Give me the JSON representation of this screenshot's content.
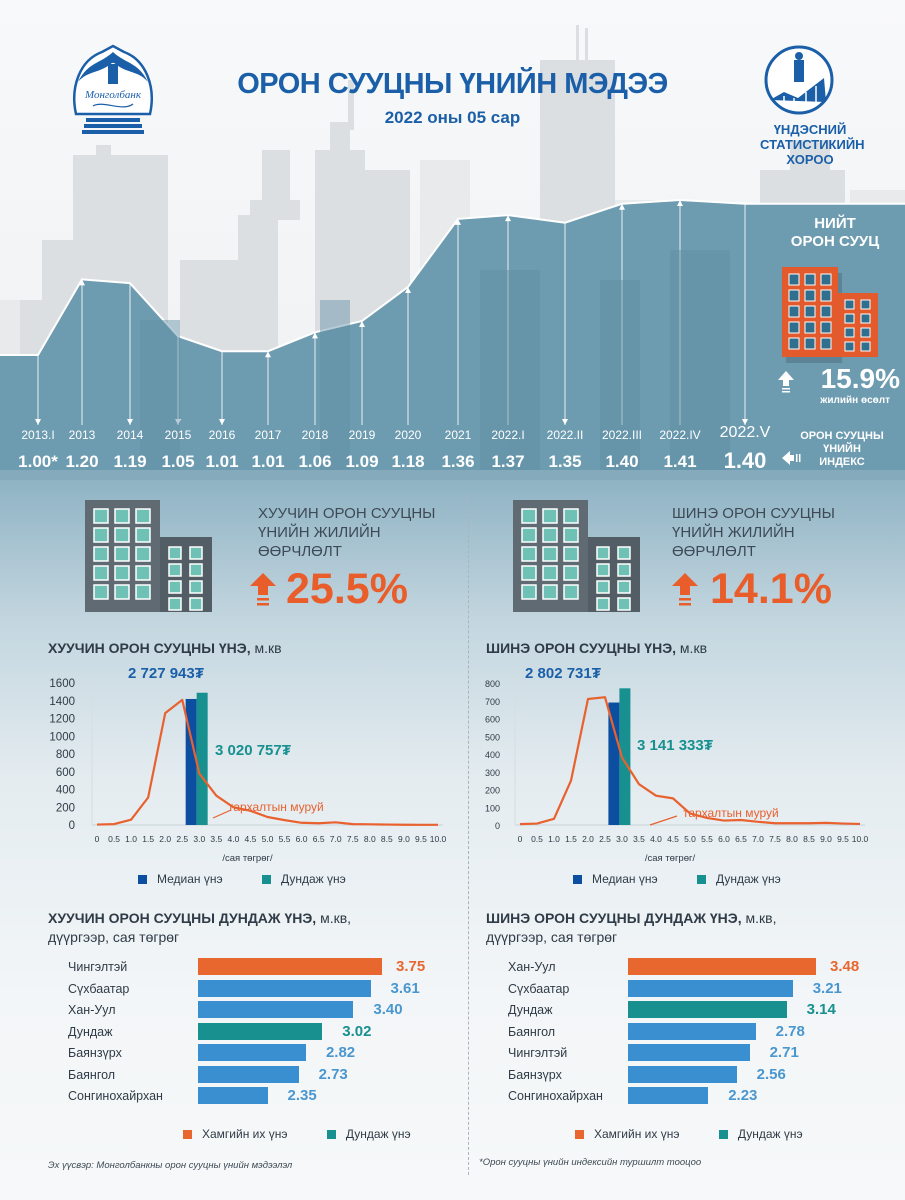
{
  "header": {
    "title": "ОРОН СУУЦНЫ ҮНИЙН МЭДЭЭ",
    "subtitle": "2022 оны 05 сар",
    "left_logo": "mongolbank-logo",
    "left_logo_text": "Монголбанк",
    "right_logo": "nso-logo",
    "right_org_name": [
      "ҮНДЭСНИЙ",
      "СТАТИСТИКИЙН",
      "ХОРОО"
    ]
  },
  "colors": {
    "primary_blue": "#1a5fa8",
    "teal": "#17908f",
    "orange": "#e85d2a",
    "bar_blue": "#3a8fd1",
    "median_blue": "#0c4fa0",
    "dark_gray": "#5f6a72",
    "area": "#6d9bb0"
  },
  "index_panel": {
    "title": [
      "ОРОН СУУЦНЫ",
      "ҮНИЙН",
      "ИНДЕКС"
    ],
    "total": {
      "title": [
        "НИЙТ",
        "ОРОН СУУЦ"
      ],
      "growth": "15.9%",
      "growth_label": "жилийн өсөлт"
    }
  },
  "changes": {
    "old": {
      "title": [
        "ХУУЧИН ОРОН СУУЦНЫ",
        "ҮНИЙН ЖИЛИЙН",
        "ӨӨРЧЛӨЛТ"
      ],
      "value": "25.5%"
    },
    "new": {
      "title": [
        "ШИНЭ ОРОН СУУЦНЫ",
        "ҮНИЙН ЖИЛИЙН",
        "ӨӨРЧЛӨЛТ"
      ],
      "value": "14.1%"
    }
  },
  "distribution": {
    "old": {
      "title_bold": "ХУУЧИН ОРОН СУУЦНЫ ҮНЭ,",
      "title_unit": " м.кв",
      "median_label": "2 727 943₮",
      "mean_label": "3 020 757₮"
    },
    "new": {
      "title_bold": "ШИНЭ ОРОН СУУЦНЫ ҮНЭ,",
      "title_unit": " м.кв",
      "median_label": "2 802 731₮",
      "mean_label": "3 141 333₮"
    },
    "curve_label": "тархалтын муруй",
    "xlabel": "/сая төгрөг/",
    "legend": [
      "Медиан үнэ",
      "Дундаж үнэ"
    ]
  },
  "district": {
    "old": {
      "title_bold": "ХУУЧИН ОРОН СУУЦНЫ ДУНДАЖ ҮНЭ,",
      "title_unit": " м.кв,",
      "subtitle": "дүүргээр, сая төгрөг"
    },
    "new": {
      "title_bold": "ШИНЭ ОРОН СУУЦНЫ ДУНДАЖ ҮНЭ,",
      "title_unit": " м.кв,",
      "subtitle": "дүүргээр, сая төгрөг"
    },
    "legend": [
      "Хамгийн их үнэ",
      "Дундаж үнэ"
    ]
  },
  "footer": {
    "source": "Эх үүсвэр: Монголбанкны орон сууцны үнийн мэдээлэл",
    "note": "*Орон сууцны үнийн индексийн туршилт тооцоо"
  },
  "chart_data": [
    {
      "type": "area",
      "title": "ОРОН СУУЦНЫ ҮНИЙН ИНДЕКС",
      "categories": [
        "2013.I",
        "2013",
        "2014",
        "2015",
        "2016",
        "2017",
        "2018",
        "2019",
        "2020",
        "2021",
        "2022.I",
        "2022.II",
        "2022.III",
        "2022.IV",
        "2022.V"
      ],
      "values": [
        1.0,
        1.2,
        1.19,
        1.05,
        1.01,
        1.01,
        1.06,
        1.09,
        1.18,
        1.36,
        1.37,
        1.35,
        1.4,
        1.41,
        1.4
      ],
      "value_labels": [
        "1.00*",
        "1.20",
        "1.19",
        "1.05",
        "1.01",
        "1.01",
        "1.06",
        "1.09",
        "1.18",
        "1.36",
        "1.37",
        "1.35",
        "1.40",
        "1.41",
        "1.40"
      ],
      "ylim": [
        0.8,
        1.45
      ]
    },
    {
      "type": "line",
      "title": "ХУУЧИН ОРОН СУУЦНЫ ҮНЭ, м.кв",
      "xlabel": "/сая төгрөг/",
      "x": [
        0,
        0.5,
        1.0,
        1.5,
        2.0,
        2.5,
        3.0,
        3.5,
        4.0,
        4.5,
        5.0,
        5.5,
        6.0,
        6.5,
        7.0,
        7.5,
        8.0,
        8.5,
        9.0,
        9.5,
        10.0
      ],
      "x_ticks": [
        "0",
        "0.5",
        "1.0",
        "1.5",
        "2.0",
        "2.5",
        "3.0",
        "3.5",
        "4.0",
        "4.5",
        "5.0",
        "5.5",
        "6.0",
        "6.5",
        "7.0",
        "7.5",
        "8.0",
        "8.5",
        "9.0",
        "9.5",
        "10.0"
      ],
      "series": [
        {
          "name": "тархалтын муруй",
          "values": [
            5,
            10,
            60,
            310,
            1260,
            1410,
            580,
            330,
            200,
            160,
            90,
            55,
            25,
            20,
            30,
            10,
            8,
            5,
            3,
            2,
            2
          ]
        }
      ],
      "markers": [
        {
          "name": "Медиан үнэ",
          "x": 2.73,
          "value": 1420,
          "label": "2 727 943₮"
        },
        {
          "name": "Дундаж үнэ",
          "x": 3.02,
          "value": 1490,
          "label": "3 020 757₮"
        }
      ],
      "y_ticks": [
        0,
        200,
        400,
        600,
        800,
        1000,
        1200,
        1400,
        1600
      ],
      "ylim": [
        0,
        1600
      ]
    },
    {
      "type": "line",
      "title": "ШИНЭ ОРОН СУУЦНЫ ҮНЭ, м.кв",
      "xlabel": "/сая төгрөг/",
      "x": [
        0,
        0.5,
        1.0,
        1.5,
        2.0,
        2.5,
        3.0,
        3.5,
        4.0,
        4.5,
        5.0,
        5.5,
        6.0,
        6.5,
        7.0,
        7.5,
        8.0,
        8.5,
        9.0,
        9.5,
        10.0
      ],
      "x_ticks": [
        "0",
        "0.5",
        "1.0",
        "1.5",
        "2.0",
        "2.5",
        "3.0",
        "3.5",
        "4.0",
        "4.5",
        "5.0",
        "5.5",
        "6.0",
        "6.5",
        "7.0",
        "7.5",
        "8.0",
        "8.5",
        "9.0",
        "9.5",
        "10.0"
      ],
      "series": [
        {
          "name": "тархалтын муруй",
          "values": [
            5,
            8,
            35,
            250,
            710,
            720,
            380,
            230,
            165,
            150,
            65,
            40,
            25,
            28,
            18,
            10,
            10,
            10,
            12,
            8,
            6
          ]
        }
      ],
      "markers": [
        {
          "name": "Медиан үнэ",
          "x": 2.8,
          "value": 690,
          "label": "2 802 731₮"
        },
        {
          "name": "Дундаж үнэ",
          "x": 3.14,
          "value": 770,
          "label": "3 141 333₮"
        }
      ],
      "y_ticks": [
        0,
        100,
        200,
        300,
        400,
        500,
        600,
        700,
        800
      ],
      "ylim": [
        0,
        800
      ]
    },
    {
      "type": "bar",
      "orientation": "horizontal",
      "title": "ХУУЧИН ОРОН СУУЦНЫ ДУНДАЖ ҮНЭ, м.кв, дүүргээр, сая төгрөг",
      "categories": [
        "Чингэлтэй",
        "Сүхбаатар",
        "Хан-Уул",
        "Дундаж",
        "Баянзүрх",
        "Баянгол",
        "Сонгинохайрхан"
      ],
      "values": [
        3.75,
        3.61,
        3.4,
        3.02,
        2.82,
        2.73,
        2.35
      ],
      "value_labels": [
        "3.75",
        "3.61",
        "3.40",
        "3.02",
        "2.82",
        "2.73",
        "2.35"
      ],
      "kinds": [
        "max",
        "normal",
        "normal",
        "avg",
        "normal",
        "normal",
        "normal"
      ]
    },
    {
      "type": "bar",
      "orientation": "horizontal",
      "title": "ШИНЭ ОРОН СУУЦНЫ ДУНДАЖ ҮНЭ, м.кв, дүүргээр, сая төгрөг",
      "categories": [
        "Хан-Уул",
        "Сүхбаатар",
        "Дундаж",
        "Баянгол",
        "Чингэлтэй",
        "Баянзүрх",
        "Сонгинохайрхан"
      ],
      "values": [
        3.48,
        3.21,
        3.14,
        2.78,
        2.71,
        2.56,
        2.23
      ],
      "value_labels": [
        "3.48",
        "3.21",
        "3.14",
        "2.78",
        "2.71",
        "2.56",
        "2.23"
      ],
      "kinds": [
        "max",
        "normal",
        "avg",
        "normal",
        "normal",
        "normal",
        "normal"
      ]
    }
  ]
}
